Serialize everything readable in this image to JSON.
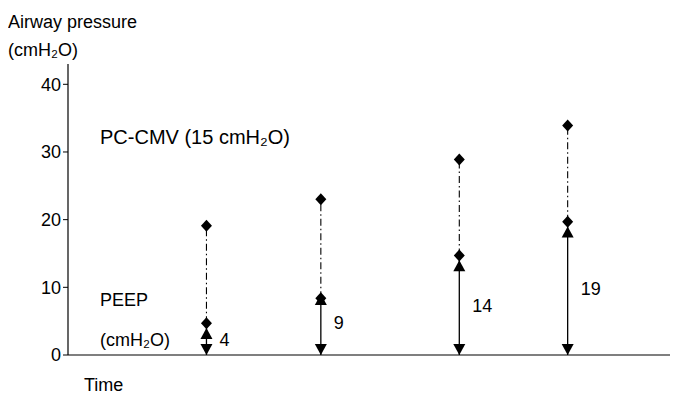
{
  "chart_data": {
    "type": "scatter",
    "y_label": "Airway pressure\n(cmH₂O)",
    "x_label": "Time",
    "annotations": [
      "PC-CMV (15 cmH₂O)",
      "PEEP\n(cmH₂O)"
    ],
    "x": [
      2.3,
      4.2,
      6.5,
      8.3
    ],
    "xlim": [
      0,
      10
    ],
    "ylim": [
      0,
      43
    ],
    "yticks": [
      0,
      10,
      20,
      30,
      40
    ],
    "tick_labels": "y",
    "series": [
      {
        "values": [
          4,
          9,
          14,
          19
        ],
        "marker": "arrow",
        "line_style": "solid",
        "data_labels": true
      },
      {
        "values": [
          4.7,
          8.4,
          14.7,
          19.7
        ],
        "marker": "diamond"
      },
      {
        "values": [
          19.1,
          23,
          28.9,
          33.9
        ],
        "marker": "diamond",
        "line_style": "dashdot"
      }
    ]
  }
}
